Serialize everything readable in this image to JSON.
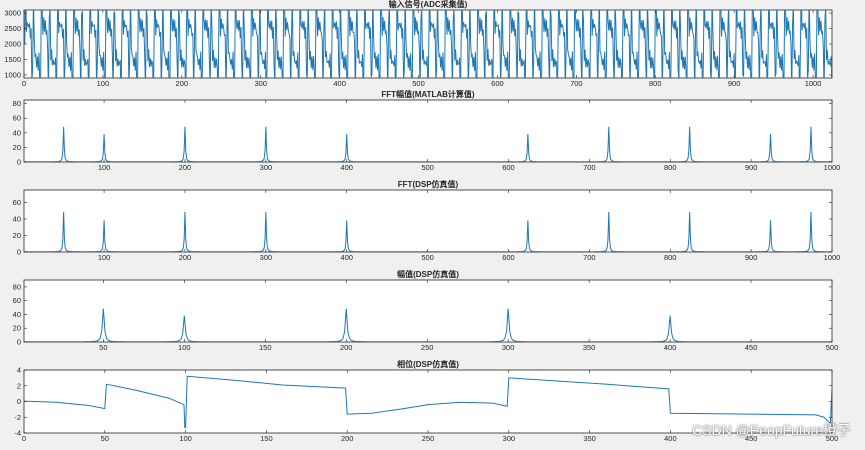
{
  "watermark": "CSDN @PeopFuture橙子",
  "colors": {
    "series": "#1f77b4",
    "axes": "#262626",
    "background": "#f0f0f0"
  },
  "chart_data": [
    {
      "id": "adc",
      "type": "line",
      "title": "输入信号(ADC采集值)",
      "xlabel": "",
      "ylabel": "",
      "xlim": [
        0,
        1024
      ],
      "ylim": [
        900,
        3100
      ],
      "xticks": [
        0,
        100,
        200,
        300,
        400,
        500,
        600,
        700,
        800,
        900,
        1000
      ],
      "yticks": [
        1000,
        1500,
        2000,
        2500,
        3000
      ],
      "grid": false,
      "series": [
        {
          "kind": "adc_signal",
          "samples": 1024,
          "offset": 2000,
          "components": [
            [
              50,
              600
            ],
            [
              100,
              500
            ],
            [
              200,
              600
            ],
            [
              300,
              600
            ],
            [
              400,
              500
            ]
          ]
        }
      ]
    },
    {
      "id": "fft_matlab",
      "type": "line",
      "title": "FFT幅值(MATLAB计算值)",
      "xlabel": "",
      "ylabel": "",
      "xlim": [
        1,
        1000
      ],
      "ylim": [
        0,
        85
      ],
      "xticks": [
        100,
        200,
        300,
        400,
        500,
        600,
        700,
        800,
        900,
        1000
      ],
      "yticks": [
        0,
        20,
        40,
        60,
        80
      ],
      "grid": false,
      "peaks": [
        [
          50,
          48
        ],
        [
          100,
          38
        ],
        [
          200,
          48
        ],
        [
          300,
          48
        ],
        [
          400,
          38
        ],
        [
          624,
          38
        ],
        [
          724,
          48
        ],
        [
          824,
          48
        ],
        [
          924,
          38
        ],
        [
          974,
          48
        ]
      ]
    },
    {
      "id": "fft_dsp",
      "type": "line",
      "title": "FFT(DSP仿真值)",
      "xlabel": "",
      "ylabel": "",
      "xlim": [
        1,
        1000
      ],
      "ylim": [
        0,
        75
      ],
      "xticks": [
        100,
        200,
        300,
        400,
        500,
        600,
        700,
        800,
        900,
        1000
      ],
      "yticks": [
        0,
        20,
        40,
        60
      ],
      "grid": false,
      "peaks": [
        [
          50,
          48
        ],
        [
          100,
          38
        ],
        [
          200,
          48
        ],
        [
          300,
          48
        ],
        [
          400,
          38
        ],
        [
          624,
          38
        ],
        [
          724,
          48
        ],
        [
          824,
          48
        ],
        [
          924,
          38
        ],
        [
          974,
          48
        ]
      ]
    },
    {
      "id": "mag_dsp",
      "type": "line",
      "title": "幅值(DSP仿真值)",
      "xlabel": "",
      "ylabel": "",
      "xlim": [
        1,
        500
      ],
      "ylim": [
        0,
        90
      ],
      "xticks": [
        50,
        100,
        150,
        200,
        250,
        300,
        350,
        400,
        450,
        500
      ],
      "yticks": [
        0,
        20,
        40,
        60,
        80
      ],
      "grid": false,
      "peaks": [
        [
          50,
          48
        ],
        [
          100,
          38
        ],
        [
          200,
          48
        ],
        [
          300,
          48
        ],
        [
          400,
          38
        ]
      ]
    },
    {
      "id": "phase_dsp",
      "type": "line",
      "title": "相位(DSP仿真值)",
      "xlabel": "",
      "ylabel": "",
      "xlim": [
        0,
        500
      ],
      "ylim": [
        -4,
        4
      ],
      "xticks": [
        0,
        50,
        100,
        150,
        200,
        250,
        300,
        350,
        400,
        450,
        500
      ],
      "yticks": [
        -4,
        -2,
        0,
        2,
        4
      ],
      "grid": false,
      "points": [
        [
          0,
          0.05
        ],
        [
          20,
          -0.1
        ],
        [
          40,
          -0.5
        ],
        [
          50,
          -0.9
        ],
        [
          51,
          2.2
        ],
        [
          70,
          1.4
        ],
        [
          90,
          0.4
        ],
        [
          99,
          -0.4
        ],
        [
          99.5,
          -3.3
        ],
        [
          100,
          -3.3
        ],
        [
          101,
          3.2
        ],
        [
          130,
          2.7
        ],
        [
          160,
          2.1
        ],
        [
          199,
          1.7
        ],
        [
          200,
          -1.6
        ],
        [
          215,
          -1.5
        ],
        [
          235,
          -0.9
        ],
        [
          250,
          -0.4
        ],
        [
          270,
          -0.1
        ],
        [
          290,
          -0.2
        ],
        [
          299,
          -0.6
        ],
        [
          300,
          3.0
        ],
        [
          330,
          2.6
        ],
        [
          360,
          2.2
        ],
        [
          399,
          1.6
        ],
        [
          400,
          -1.5
        ],
        [
          450,
          -1.6
        ],
        [
          490,
          -1.7
        ],
        [
          495,
          -2.0
        ],
        [
          499,
          -2.8
        ],
        [
          500,
          2.0
        ]
      ]
    }
  ]
}
